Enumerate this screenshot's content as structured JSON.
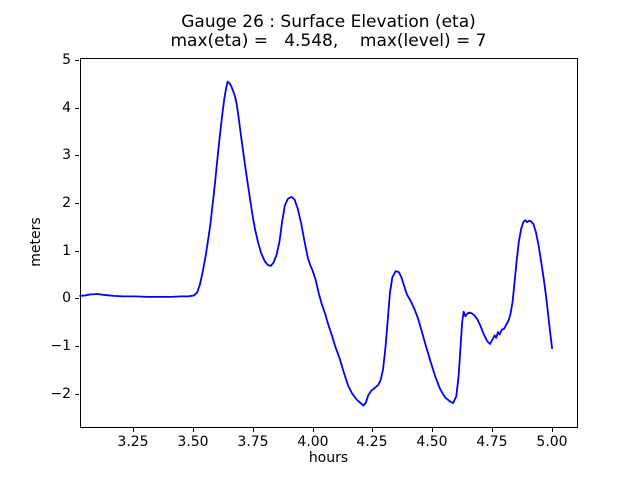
{
  "figure": {
    "background_color": "#ffffff",
    "text_color": "#000000",
    "spine_color": "#000000"
  },
  "chart_data": {
    "type": "line",
    "title": "Gauge 26 : Surface Elevation (eta)",
    "subtitle": "max(eta) =   4.548,    max(level) = 7",
    "max_eta": "4.548",
    "max_level": "7",
    "xlabel": "hours",
    "ylabel": "meters",
    "xlim": [
      3.0287,
      5.1041
    ],
    "ylim": [
      -2.703,
      5.046
    ],
    "xticks": [
      3.25,
      3.5,
      3.75,
      4.0,
      4.25,
      4.5,
      4.75,
      5.0
    ],
    "xtick_labels": [
      "3.25",
      "3.50",
      "3.75",
      "4.00",
      "4.25",
      "4.50",
      "4.75",
      "5.00"
    ],
    "yticks": [
      5,
      4,
      3,
      2,
      1,
      0,
      -1,
      -2
    ],
    "ytick_labels": [
      "5",
      "4",
      "3",
      "2",
      "1",
      "0",
      "−1",
      "−2"
    ],
    "grid": false,
    "legend": "none",
    "series": [
      {
        "name": "eta",
        "color": "#0000ff",
        "line_width": 1.8,
        "points": [
          [
            3.029,
            0.05
          ],
          [
            3.05,
            0.06
          ],
          [
            3.07,
            0.08
          ],
          [
            3.1,
            0.09
          ],
          [
            3.13,
            0.07
          ],
          [
            3.17,
            0.05
          ],
          [
            3.21,
            0.04
          ],
          [
            3.26,
            0.04
          ],
          [
            3.31,
            0.03
          ],
          [
            3.36,
            0.03
          ],
          [
            3.41,
            0.03
          ],
          [
            3.45,
            0.04
          ],
          [
            3.48,
            0.04
          ],
          [
            3.505,
            0.06
          ],
          [
            3.518,
            0.12
          ],
          [
            3.53,
            0.3
          ],
          [
            3.542,
            0.58
          ],
          [
            3.553,
            0.88
          ],
          [
            3.563,
            1.2
          ],
          [
            3.573,
            1.55
          ],
          [
            3.582,
            1.95
          ],
          [
            3.592,
            2.4
          ],
          [
            3.602,
            2.9
          ],
          [
            3.612,
            3.38
          ],
          [
            3.622,
            3.82
          ],
          [
            3.631,
            4.18
          ],
          [
            3.639,
            4.42
          ],
          [
            3.645,
            4.548
          ],
          [
            3.652,
            4.52
          ],
          [
            3.66,
            4.46
          ],
          [
            3.669,
            4.34
          ],
          [
            3.677,
            4.22
          ],
          [
            3.683,
            4.08
          ],
          [
            3.691,
            3.8
          ],
          [
            3.7,
            3.45
          ],
          [
            3.71,
            3.08
          ],
          [
            3.72,
            2.72
          ],
          [
            3.73,
            2.38
          ],
          [
            3.74,
            2.04
          ],
          [
            3.75,
            1.72
          ],
          [
            3.76,
            1.44
          ],
          [
            3.772,
            1.18
          ],
          [
            3.785,
            0.95
          ],
          [
            3.8,
            0.78
          ],
          [
            3.813,
            0.7
          ],
          [
            3.825,
            0.68
          ],
          [
            3.837,
            0.75
          ],
          [
            3.85,
            0.92
          ],
          [
            3.862,
            1.2
          ],
          [
            3.873,
            1.62
          ],
          [
            3.884,
            1.95
          ],
          [
            3.897,
            2.09
          ],
          [
            3.912,
            2.13
          ],
          [
            3.925,
            2.07
          ],
          [
            3.938,
            1.88
          ],
          [
            3.952,
            1.58
          ],
          [
            3.966,
            1.2
          ],
          [
            3.98,
            0.85
          ],
          [
            3.99,
            0.7
          ],
          [
            4.0,
            0.58
          ],
          [
            4.012,
            0.4
          ],
          [
            4.025,
            0.12
          ],
          [
            4.038,
            -0.12
          ],
          [
            4.052,
            -0.32
          ],
          [
            4.066,
            -0.56
          ],
          [
            4.08,
            -0.77
          ],
          [
            4.095,
            -1.02
          ],
          [
            4.112,
            -1.25
          ],
          [
            4.13,
            -1.55
          ],
          [
            4.148,
            -1.83
          ],
          [
            4.165,
            -2.0
          ],
          [
            4.183,
            -2.12
          ],
          [
            4.198,
            -2.19
          ],
          [
            4.212,
            -2.25
          ],
          [
            4.222,
            -2.2
          ],
          [
            4.232,
            -2.04
          ],
          [
            4.245,
            -1.94
          ],
          [
            4.26,
            -1.88
          ],
          [
            4.274,
            -1.82
          ],
          [
            4.284,
            -1.72
          ],
          [
            4.294,
            -1.5
          ],
          [
            4.304,
            -1.05
          ],
          [
            4.314,
            -0.45
          ],
          [
            4.323,
            0.12
          ],
          [
            4.333,
            0.44
          ],
          [
            4.347,
            0.57
          ],
          [
            4.36,
            0.55
          ],
          [
            4.371,
            0.44
          ],
          [
            4.381,
            0.28
          ],
          [
            4.394,
            0.08
          ],
          [
            4.41,
            -0.06
          ],
          [
            4.425,
            -0.22
          ],
          [
            4.44,
            -0.42
          ],
          [
            4.455,
            -0.68
          ],
          [
            4.472,
            -0.98
          ],
          [
            4.492,
            -1.32
          ],
          [
            4.512,
            -1.64
          ],
          [
            4.532,
            -1.9
          ],
          [
            4.553,
            -2.08
          ],
          [
            4.572,
            -2.16
          ],
          [
            4.587,
            -2.2
          ],
          [
            4.6,
            -2.06
          ],
          [
            4.61,
            -1.62
          ],
          [
            4.618,
            -1.0
          ],
          [
            4.625,
            -0.48
          ],
          [
            4.631,
            -0.28
          ],
          [
            4.638,
            -0.38
          ],
          [
            4.646,
            -0.32
          ],
          [
            4.656,
            -0.3
          ],
          [
            4.666,
            -0.32
          ],
          [
            4.676,
            -0.36
          ],
          [
            4.688,
            -0.44
          ],
          [
            4.701,
            -0.58
          ],
          [
            4.715,
            -0.76
          ],
          [
            4.729,
            -0.9
          ],
          [
            4.741,
            -0.96
          ],
          [
            4.752,
            -0.86
          ],
          [
            4.76,
            -0.78
          ],
          [
            4.767,
            -0.83
          ],
          [
            4.774,
            -0.71
          ],
          [
            4.781,
            -0.76
          ],
          [
            4.79,
            -0.66
          ],
          [
            4.8,
            -0.64
          ],
          [
            4.81,
            -0.54
          ],
          [
            4.818,
            -0.47
          ],
          [
            4.826,
            -0.34
          ],
          [
            4.835,
            -0.08
          ],
          [
            4.843,
            0.32
          ],
          [
            4.852,
            0.78
          ],
          [
            4.861,
            1.18
          ],
          [
            4.871,
            1.46
          ],
          [
            4.88,
            1.6
          ],
          [
            4.888,
            1.64
          ],
          [
            4.896,
            1.6
          ],
          [
            4.904,
            1.63
          ],
          [
            4.913,
            1.61
          ],
          [
            4.922,
            1.56
          ],
          [
            4.933,
            1.38
          ],
          [
            4.944,
            1.1
          ],
          [
            4.955,
            0.75
          ],
          [
            4.966,
            0.38
          ],
          [
            4.976,
            0.0
          ],
          [
            4.986,
            -0.45
          ],
          [
            4.994,
            -0.8
          ],
          [
            5.0,
            -1.05
          ]
        ]
      }
    ]
  }
}
